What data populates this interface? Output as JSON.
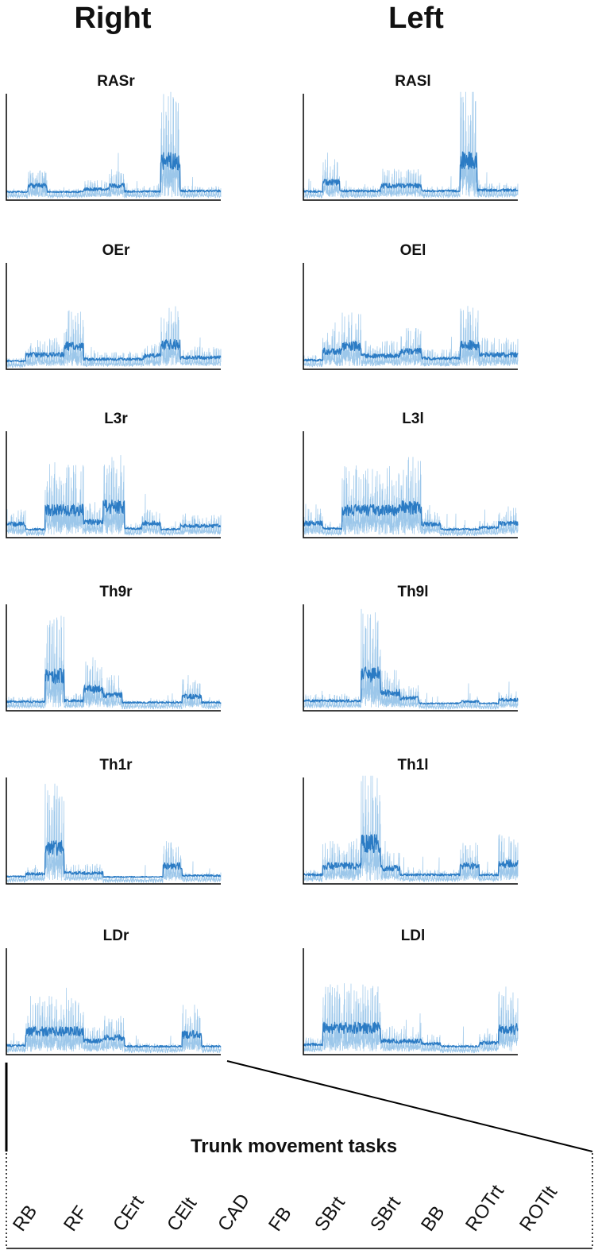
{
  "headers": {
    "right": "Right",
    "left": "Left"
  },
  "task_title": "Trunk movement tasks",
  "tasks": [
    "RB",
    "RF",
    "CErt",
    "CElt",
    "CAD",
    "FB",
    "SBrt",
    "SBrt",
    "BB",
    "ROTrt",
    "ROTlt"
  ],
  "colors": {
    "signal": "#2b7bc4",
    "signal_light": "#9cc7ea",
    "axis": "#000000"
  },
  "chart_data": [
    {
      "type": "line",
      "title": "RASr",
      "side": "right",
      "segments": [
        {
          "x": [
            0.0,
            0.1
          ],
          "y": 0.08
        },
        {
          "x": [
            0.1,
            0.19
          ],
          "y": 0.22
        },
        {
          "x": [
            0.19,
            0.36
          ],
          "y": 0.08
        },
        {
          "x": [
            0.36,
            0.48
          ],
          "y": 0.14
        },
        {
          "x": [
            0.48,
            0.55
          ],
          "y": 0.22
        },
        {
          "x": [
            0.55,
            0.72
          ],
          "y": 0.09
        },
        {
          "x": [
            0.72,
            0.81
          ],
          "y": 0.78
        },
        {
          "x": [
            0.81,
            1.0
          ],
          "y": 0.1
        }
      ]
    },
    {
      "type": "line",
      "title": "RASl",
      "side": "left",
      "segments": [
        {
          "x": [
            0.0,
            0.09
          ],
          "y": 0.09
        },
        {
          "x": [
            0.09,
            0.17
          ],
          "y": 0.3
        },
        {
          "x": [
            0.17,
            0.36
          ],
          "y": 0.1
        },
        {
          "x": [
            0.36,
            0.55
          ],
          "y": 0.22
        },
        {
          "x": [
            0.55,
            0.73
          ],
          "y": 0.1
        },
        {
          "x": [
            0.73,
            0.81
          ],
          "y": 0.8
        },
        {
          "x": [
            0.81,
            1.0
          ],
          "y": 0.12
        }
      ]
    },
    {
      "type": "line",
      "title": "OEr",
      "side": "right",
      "segments": [
        {
          "x": [
            0.0,
            0.09
          ],
          "y": 0.08
        },
        {
          "x": [
            0.09,
            0.27
          ],
          "y": 0.22
        },
        {
          "x": [
            0.27,
            0.36
          ],
          "y": 0.42
        },
        {
          "x": [
            0.36,
            0.64
          ],
          "y": 0.12
        },
        {
          "x": [
            0.64,
            0.72
          ],
          "y": 0.2
        },
        {
          "x": [
            0.72,
            0.81
          ],
          "y": 0.45
        },
        {
          "x": [
            0.81,
            1.0
          ],
          "y": 0.16
        }
      ]
    },
    {
      "type": "line",
      "title": "OEl",
      "side": "left",
      "segments": [
        {
          "x": [
            0.0,
            0.09
          ],
          "y": 0.1
        },
        {
          "x": [
            0.09,
            0.18
          ],
          "y": 0.3
        },
        {
          "x": [
            0.18,
            0.27
          ],
          "y": 0.42
        },
        {
          "x": [
            0.27,
            0.45
          ],
          "y": 0.2
        },
        {
          "x": [
            0.45,
            0.55
          ],
          "y": 0.3
        },
        {
          "x": [
            0.55,
            0.73
          ],
          "y": 0.14
        },
        {
          "x": [
            0.73,
            0.82
          ],
          "y": 0.45
        },
        {
          "x": [
            0.82,
            1.0
          ],
          "y": 0.22
        }
      ]
    },
    {
      "type": "line",
      "title": "L3r",
      "side": "right",
      "segments": [
        {
          "x": [
            0.0,
            0.09
          ],
          "y": 0.2
        },
        {
          "x": [
            0.09,
            0.18
          ],
          "y": 0.08
        },
        {
          "x": [
            0.18,
            0.36
          ],
          "y": 0.52
        },
        {
          "x": [
            0.36,
            0.45
          ],
          "y": 0.25
        },
        {
          "x": [
            0.45,
            0.55
          ],
          "y": 0.6
        },
        {
          "x": [
            0.55,
            0.63
          ],
          "y": 0.1
        },
        {
          "x": [
            0.63,
            0.72
          ],
          "y": 0.22
        },
        {
          "x": [
            0.72,
            0.81
          ],
          "y": 0.08
        },
        {
          "x": [
            0.81,
            1.0
          ],
          "y": 0.16
        }
      ]
    },
    {
      "type": "line",
      "title": "L3l",
      "side": "left",
      "segments": [
        {
          "x": [
            0.0,
            0.09
          ],
          "y": 0.22
        },
        {
          "x": [
            0.09,
            0.18
          ],
          "y": 0.1
        },
        {
          "x": [
            0.18,
            0.45
          ],
          "y": 0.52
        },
        {
          "x": [
            0.45,
            0.55
          ],
          "y": 0.58
        },
        {
          "x": [
            0.55,
            0.64
          ],
          "y": 0.2
        },
        {
          "x": [
            0.64,
            0.82
          ],
          "y": 0.08
        },
        {
          "x": [
            0.82,
            0.91
          ],
          "y": 0.12
        },
        {
          "x": [
            0.91,
            1.0
          ],
          "y": 0.22
        }
      ]
    },
    {
      "type": "line",
      "title": "Th9r",
      "side": "right",
      "segments": [
        {
          "x": [
            0.0,
            0.18
          ],
          "y": 0.1
        },
        {
          "x": [
            0.18,
            0.27
          ],
          "y": 0.68
        },
        {
          "x": [
            0.27,
            0.36
          ],
          "y": 0.12
        },
        {
          "x": [
            0.36,
            0.45
          ],
          "y": 0.38
        },
        {
          "x": [
            0.45,
            0.54
          ],
          "y": 0.25
        },
        {
          "x": [
            0.54,
            0.82
          ],
          "y": 0.08
        },
        {
          "x": [
            0.82,
            0.91
          ],
          "y": 0.22
        },
        {
          "x": [
            0.91,
            1.0
          ],
          "y": 0.08
        }
      ]
    },
    {
      "type": "line",
      "title": "Th9l",
      "side": "left",
      "segments": [
        {
          "x": [
            0.0,
            0.27
          ],
          "y": 0.12
        },
        {
          "x": [
            0.27,
            0.36
          ],
          "y": 0.72
        },
        {
          "x": [
            0.36,
            0.45
          ],
          "y": 0.3
        },
        {
          "x": [
            0.45,
            0.54
          ],
          "y": 0.18
        },
        {
          "x": [
            0.54,
            0.73
          ],
          "y": 0.06
        },
        {
          "x": [
            0.73,
            0.82
          ],
          "y": 0.1
        },
        {
          "x": [
            0.82,
            0.91
          ],
          "y": 0.06
        },
        {
          "x": [
            0.91,
            1.0
          ],
          "y": 0.14
        }
      ]
    },
    {
      "type": "line",
      "title": "Th1r",
      "side": "right",
      "segments": [
        {
          "x": [
            0.0,
            0.09
          ],
          "y": 0.06
        },
        {
          "x": [
            0.09,
            0.18
          ],
          "y": 0.12
        },
        {
          "x": [
            0.18,
            0.27
          ],
          "y": 0.72
        },
        {
          "x": [
            0.27,
            0.45
          ],
          "y": 0.14
        },
        {
          "x": [
            0.45,
            0.73
          ],
          "y": 0.05
        },
        {
          "x": [
            0.73,
            0.82
          ],
          "y": 0.3
        },
        {
          "x": [
            0.82,
            1.0
          ],
          "y": 0.08
        }
      ]
    },
    {
      "type": "line",
      "title": "Th1l",
      "side": "left",
      "segments": [
        {
          "x": [
            0.0,
            0.09
          ],
          "y": 0.1
        },
        {
          "x": [
            0.09,
            0.27
          ],
          "y": 0.3
        },
        {
          "x": [
            0.27,
            0.36
          ],
          "y": 0.82
        },
        {
          "x": [
            0.36,
            0.45
          ],
          "y": 0.25
        },
        {
          "x": [
            0.45,
            0.73
          ],
          "y": 0.1
        },
        {
          "x": [
            0.73,
            0.82
          ],
          "y": 0.3
        },
        {
          "x": [
            0.82,
            0.91
          ],
          "y": 0.1
        },
        {
          "x": [
            0.91,
            1.0
          ],
          "y": 0.35
        }
      ]
    },
    {
      "type": "line",
      "title": "LDr",
      "side": "right",
      "segments": [
        {
          "x": [
            0.0,
            0.09
          ],
          "y": 0.1
        },
        {
          "x": [
            0.09,
            0.36
          ],
          "y": 0.42
        },
        {
          "x": [
            0.36,
            0.45
          ],
          "y": 0.2
        },
        {
          "x": [
            0.45,
            0.55
          ],
          "y": 0.28
        },
        {
          "x": [
            0.55,
            0.82
          ],
          "y": 0.08
        },
        {
          "x": [
            0.82,
            0.91
          ],
          "y": 0.35
        },
        {
          "x": [
            0.91,
            1.0
          ],
          "y": 0.08
        }
      ]
    },
    {
      "type": "line",
      "title": "LDl",
      "side": "left",
      "segments": [
        {
          "x": [
            0.0,
            0.09
          ],
          "y": 0.12
        },
        {
          "x": [
            0.09,
            0.36
          ],
          "y": 0.5
        },
        {
          "x": [
            0.36,
            0.55
          ],
          "y": 0.2
        },
        {
          "x": [
            0.55,
            0.64
          ],
          "y": 0.14
        },
        {
          "x": [
            0.64,
            0.82
          ],
          "y": 0.08
        },
        {
          "x": [
            0.82,
            0.91
          ],
          "y": 0.16
        },
        {
          "x": [
            0.91,
            1.0
          ],
          "y": 0.48
        }
      ]
    }
  ]
}
